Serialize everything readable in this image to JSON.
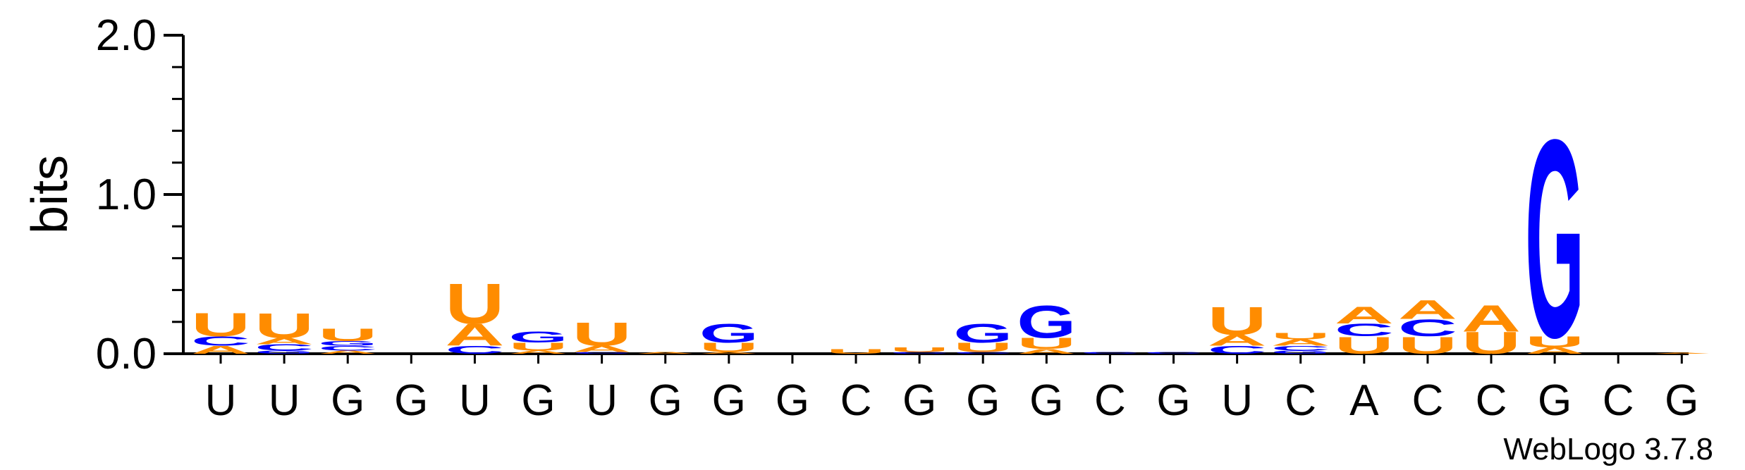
{
  "chart_data": {
    "type": "sequence-logo",
    "ylabel": "bits",
    "ylim": [
      0,
      2.0
    ],
    "yticks": [
      "0.0",
      "1.0",
      "2.0"
    ],
    "credit": "WebLogo 3.7.8",
    "colors": {
      "A": "#ff8c00",
      "U": "#ff8c00",
      "C": "#0000ff",
      "G": "#0000ff"
    },
    "positions": [
      {
        "consensus": "U",
        "stack": [
          {
            "letter": "A",
            "bits": 0.05
          },
          {
            "letter": "C",
            "bits": 0.06
          },
          {
            "letter": "U",
            "bits": 0.15
          }
        ]
      },
      {
        "consensus": "U",
        "stack": [
          {
            "letter": "G",
            "bits": 0.02
          },
          {
            "letter": "C",
            "bits": 0.04
          },
          {
            "letter": "A",
            "bits": 0.04
          },
          {
            "letter": "U",
            "bits": 0.16
          }
        ]
      },
      {
        "consensus": "G",
        "stack": [
          {
            "letter": "A",
            "bits": 0.02
          },
          {
            "letter": "C",
            "bits": 0.03
          },
          {
            "letter": "G",
            "bits": 0.03
          },
          {
            "letter": "U",
            "bits": 0.08
          }
        ]
      },
      {
        "consensus": "G",
        "stack": []
      },
      {
        "consensus": "U",
        "stack": [
          {
            "letter": "C",
            "bits": 0.05
          },
          {
            "letter": "A",
            "bits": 0.14
          },
          {
            "letter": "U",
            "bits": 0.26
          }
        ]
      },
      {
        "consensus": "G",
        "stack": [
          {
            "letter": "A",
            "bits": 0.02
          },
          {
            "letter": "U",
            "bits": 0.05
          },
          {
            "letter": "G",
            "bits": 0.07
          }
        ]
      },
      {
        "consensus": "U",
        "stack": [
          {
            "letter": "C",
            "bits": 0.01
          },
          {
            "letter": "A",
            "bits": 0.04
          },
          {
            "letter": "U",
            "bits": 0.15
          }
        ]
      },
      {
        "consensus": "G",
        "stack": [
          {
            "letter": "A",
            "bits": 0.01
          }
        ]
      },
      {
        "consensus": "G",
        "stack": [
          {
            "letter": "A",
            "bits": 0.01
          },
          {
            "letter": "U",
            "bits": 0.06
          },
          {
            "letter": "G",
            "bits": 0.12
          }
        ]
      },
      {
        "consensus": "G",
        "stack": []
      },
      {
        "consensus": "C",
        "stack": [
          {
            "letter": "U",
            "bits": 0.03
          }
        ]
      },
      {
        "consensus": "G",
        "stack": [
          {
            "letter": "C",
            "bits": 0.01
          },
          {
            "letter": "U",
            "bits": 0.03
          }
        ]
      },
      {
        "consensus": "G",
        "stack": [
          {
            "letter": "C",
            "bits": 0.01
          },
          {
            "letter": "U",
            "bits": 0.06
          },
          {
            "letter": "G",
            "bits": 0.12
          }
        ]
      },
      {
        "consensus": "G",
        "stack": [
          {
            "letter": "A",
            "bits": 0.03
          },
          {
            "letter": "U",
            "bits": 0.07
          },
          {
            "letter": "G",
            "bits": 0.21
          }
        ]
      },
      {
        "consensus": "C",
        "stack": [
          {
            "letter": "C",
            "bits": 0.01
          }
        ]
      },
      {
        "consensus": "G",
        "stack": [
          {
            "letter": "C",
            "bits": 0.01
          }
        ]
      },
      {
        "consensus": "U",
        "stack": [
          {
            "letter": "C",
            "bits": 0.05
          },
          {
            "letter": "A",
            "bits": 0.07
          },
          {
            "letter": "U",
            "bits": 0.18
          }
        ]
      },
      {
        "consensus": "C",
        "stack": [
          {
            "letter": "G",
            "bits": 0.02
          },
          {
            "letter": "C",
            "bits": 0.03
          },
          {
            "letter": "A",
            "bits": 0.04
          },
          {
            "letter": "U",
            "bits": 0.04
          }
        ]
      },
      {
        "consensus": "A",
        "stack": [
          {
            "letter": "U",
            "bits": 0.11
          },
          {
            "letter": "C",
            "bits": 0.08
          },
          {
            "letter": "A",
            "bits": 0.11
          }
        ]
      },
      {
        "consensus": "C",
        "stack": [
          {
            "letter": "U",
            "bits": 0.11
          },
          {
            "letter": "C",
            "bits": 0.11
          },
          {
            "letter": "A",
            "bits": 0.12
          }
        ]
      },
      {
        "consensus": "C",
        "stack": [
          {
            "letter": "U",
            "bits": 0.14
          },
          {
            "letter": "A",
            "bits": 0.17
          }
        ]
      },
      {
        "consensus": "G",
        "stack": [
          {
            "letter": "A",
            "bits": 0.04
          },
          {
            "letter": "U",
            "bits": 0.07
          },
          {
            "letter": "G",
            "bits": 1.27
          }
        ]
      },
      {
        "consensus": "C",
        "stack": []
      },
      {
        "consensus": "G",
        "stack": [
          {
            "letter": "A",
            "bits": 0.005
          }
        ]
      }
    ]
  }
}
